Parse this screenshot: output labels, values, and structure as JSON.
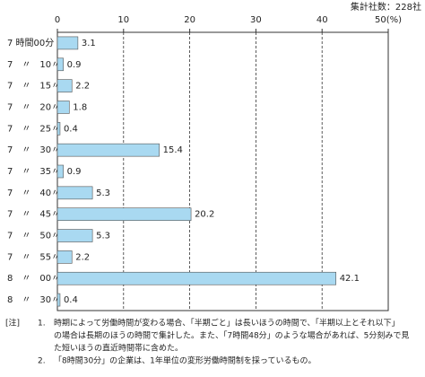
{
  "chart_data": {
    "type": "bar",
    "orientation": "horizontal",
    "header_note": "集計社数：228社",
    "categories": [
      "7 時間00分",
      "7　〃　10〃",
      "7　〃　15〃",
      "7　〃　20〃",
      "7　〃　25〃",
      "7　〃　30〃",
      "7　〃　35〃",
      "7　〃　40〃",
      "7　〃　45〃",
      "7　〃　50〃",
      "7　〃　55〃",
      "8　〃　00〃",
      "8　〃　30〃"
    ],
    "values": [
      3.1,
      0.9,
      2.2,
      1.8,
      0.4,
      15.4,
      0.9,
      5.3,
      20.2,
      5.3,
      2.2,
      42.1,
      0.4
    ],
    "color": "#a9d9f1",
    "xlim": [
      0,
      50
    ],
    "xticks": [
      0,
      10,
      20,
      30,
      40,
      {
        "value": 50,
        "label": "50(%)"
      }
    ],
    "grid": true
  },
  "notes": {
    "label": "[注]",
    "items": [
      {
        "number": "1.",
        "lines": [
          "時期によって労働時間が変わる場合、「半期ごと」は長いほうの時間で、「半期以上とそれ以下」",
          "の場合は長期のほうの時間で集計した。また、「7時間48分」のような場合があれば、5分刻みで見",
          "た短いほうの直近時間帯に含めた。"
        ]
      },
      {
        "number": "2.",
        "lines": [
          "「8時間30分」の企業は、1年単位の変形労働時間制を採っているもの。"
        ]
      }
    ]
  }
}
